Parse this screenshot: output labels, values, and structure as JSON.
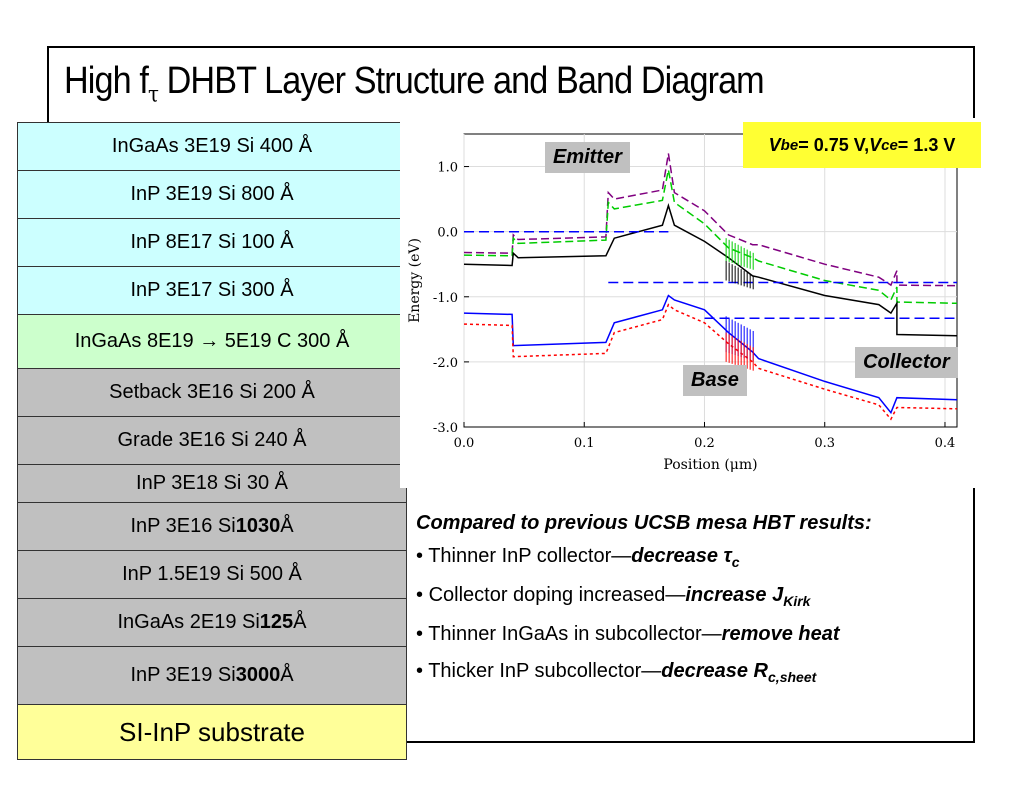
{
  "title": {
    "main": "High f",
    "sub": "τ",
    "rest": " DHBT Layer Structure and Band Diagram"
  },
  "layers": [
    {
      "text": "InGaAs 3E19 Si 400 Å",
      "color": "#ccffff"
    },
    {
      "text": "InP 3E19 Si 800 Å",
      "color": "#ccffff"
    },
    {
      "text": "InP 8E17 Si 100 Å",
      "color": "#ccffff"
    },
    {
      "text": "InP 3E17 Si 300 Å",
      "color": "#ccffff"
    },
    {
      "text": "InGaAs 8E19 → 5E19 C 300 Å",
      "color": "#ccffcc"
    },
    {
      "text": "Setback 3E16 Si 200 Å",
      "color": "#c0c0c0"
    },
    {
      "text": "Grade 3E16 Si 240 Å",
      "color": "#c0c0c0"
    },
    {
      "text": "InP 3E18 Si 30 Å",
      "color": "#c0c0c0"
    },
    {
      "text_pre": "InP 3E16 Si ",
      "text_bold": "1030",
      "text_post": " Å",
      "color": "#c0c0c0"
    },
    {
      "text": "InP 1.5E19 Si 500 Å",
      "color": "#c0c0c0"
    },
    {
      "text_pre": "InGaAs 2E19 Si ",
      "text_bold": "125",
      "text_post": " Å",
      "color": "#c0c0c0"
    },
    {
      "text_pre": "InP 3E19 Si ",
      "text_bold": "3000",
      "text_post": " Å",
      "color": "#c0c0c0"
    },
    {
      "text": "SI-InP substrate",
      "color": "#ffff99"
    }
  ],
  "bias": {
    "v": "V",
    "be": "be",
    "eq1": " = 0.75 V, ",
    "v2": "V",
    "ce": "ce",
    "eq2": " = 1.3 V"
  },
  "region_labels": {
    "emitter": "Emitter",
    "base": "Base",
    "collector": "Collector"
  },
  "chart_data": {
    "type": "line",
    "xlabel": "Position (μm)",
    "ylabel": "Energy (eV)",
    "xlim": [
      0.0,
      0.41
    ],
    "ylim": [
      -3.0,
      1.5
    ],
    "x_ticks": [
      "0.0",
      "0.1",
      "0.2",
      "0.3",
      "0.4"
    ],
    "y_ticks": [
      "1.0",
      "0.0",
      "-1.0",
      "-2.0",
      "-3.0"
    ],
    "series": [
      {
        "color": "#800080",
        "dash": "8,4",
        "points": [
          [
            0,
            -0.32
          ],
          [
            0.04,
            -0.33
          ],
          [
            0.041,
            -0.05
          ],
          [
            0.045,
            -0.12
          ],
          [
            0.118,
            -0.08
          ],
          [
            0.12,
            0.6
          ],
          [
            0.125,
            0.5
          ],
          [
            0.165,
            0.64
          ],
          [
            0.17,
            1.2
          ],
          [
            0.175,
            0.6
          ],
          [
            0.2,
            0.32
          ],
          [
            0.22,
            -0.05
          ],
          [
            0.24,
            -0.2
          ],
          [
            0.245,
            -0.2
          ],
          [
            0.3,
            -0.5
          ],
          [
            0.345,
            -0.7
          ],
          [
            0.355,
            -0.82
          ],
          [
            0.36,
            -0.6
          ],
          [
            0.36,
            -0.82
          ],
          [
            0.41,
            -0.83
          ]
        ]
      },
      {
        "color": "#00cc00",
        "dash": "8,4",
        "points": [
          [
            0,
            -0.36
          ],
          [
            0.04,
            -0.37
          ],
          [
            0.041,
            -0.1
          ],
          [
            0.045,
            -0.18
          ],
          [
            0.118,
            -0.13
          ],
          [
            0.12,
            0.45
          ],
          [
            0.125,
            0.35
          ],
          [
            0.165,
            0.48
          ],
          [
            0.17,
            0.95
          ],
          [
            0.175,
            0.45
          ],
          [
            0.2,
            0.12
          ],
          [
            0.22,
            -0.25
          ],
          [
            0.24,
            -0.4
          ],
          [
            0.245,
            -0.45
          ],
          [
            0.3,
            -0.75
          ],
          [
            0.345,
            -0.9
          ],
          [
            0.355,
            -1.05
          ],
          [
            0.36,
            -0.85
          ],
          [
            0.36,
            -1.08
          ],
          [
            0.41,
            -1.1
          ]
        ]
      },
      {
        "color": "#000000",
        "dash": "",
        "points": [
          [
            0,
            -0.5
          ],
          [
            0.04,
            -0.52
          ],
          [
            0.041,
            -0.33
          ],
          [
            0.045,
            -0.4
          ],
          [
            0.118,
            -0.37
          ],
          [
            0.125,
            -0.1
          ],
          [
            0.165,
            0.1
          ],
          [
            0.17,
            0.4
          ],
          [
            0.175,
            0.1
          ],
          [
            0.2,
            -0.15
          ],
          [
            0.22,
            -0.4
          ],
          [
            0.24,
            -0.68
          ],
          [
            0.245,
            -0.7
          ],
          [
            0.3,
            -0.98
          ],
          [
            0.345,
            -1.12
          ],
          [
            0.355,
            -1.25
          ],
          [
            0.36,
            -1.1
          ],
          [
            0.36,
            -1.58
          ],
          [
            0.41,
            -1.6
          ]
        ]
      },
      {
        "color": "#0000ff",
        "dash": "",
        "points": [
          [
            0,
            -1.25
          ],
          [
            0.04,
            -1.27
          ],
          [
            0.041,
            -1.75
          ],
          [
            0.118,
            -1.7
          ],
          [
            0.125,
            -1.4
          ],
          [
            0.165,
            -1.2
          ],
          [
            0.17,
            -0.98
          ],
          [
            0.175,
            -1.05
          ],
          [
            0.2,
            -1.2
          ],
          [
            0.22,
            -1.55
          ],
          [
            0.24,
            -1.85
          ],
          [
            0.245,
            -1.95
          ],
          [
            0.3,
            -2.3
          ],
          [
            0.345,
            -2.55
          ],
          [
            0.355,
            -2.78
          ],
          [
            0.36,
            -2.55
          ],
          [
            0.36,
            -2.55
          ],
          [
            0.41,
            -2.58
          ]
        ]
      },
      {
        "color": "#ff0000",
        "dash": "3,3",
        "points": [
          [
            0,
            -1.42
          ],
          [
            0.04,
            -1.44
          ],
          [
            0.041,
            -1.92
          ],
          [
            0.118,
            -1.87
          ],
          [
            0.125,
            -1.55
          ],
          [
            0.165,
            -1.35
          ],
          [
            0.17,
            -1.12
          ],
          [
            0.175,
            -1.2
          ],
          [
            0.2,
            -1.4
          ],
          [
            0.22,
            -1.72
          ],
          [
            0.24,
            -2.0
          ],
          [
            0.245,
            -2.1
          ],
          [
            0.3,
            -2.42
          ],
          [
            0.345,
            -2.66
          ],
          [
            0.355,
            -2.88
          ],
          [
            0.36,
            -2.7
          ],
          [
            0.36,
            -2.7
          ],
          [
            0.41,
            -2.72
          ]
        ]
      },
      {
        "color": "#0000ff",
        "dash": "10,5",
        "points": [
          [
            0,
            0.0
          ],
          [
            0.17,
            0.0
          ]
        ]
      },
      {
        "color": "#0000ff",
        "dash": "10,5",
        "points": [
          [
            0.12,
            -0.78
          ],
          [
            0.41,
            -0.78
          ]
        ]
      },
      {
        "color": "#0000ff",
        "dash": "10,5",
        "points": [
          [
            0.2,
            -1.33
          ],
          [
            0.41,
            -1.33
          ]
        ]
      }
    ]
  },
  "notes": {
    "heading": "Compared to previous UCSB mesa HBT results:",
    "items": [
      {
        "pre": "Thinner InP collector—",
        "bold": "decrease τ",
        "sub": "c"
      },
      {
        "pre": "Collector doping increased—",
        "bold": "increase J",
        "sub": "Kirk"
      },
      {
        "pre": "Thinner InGaAs in subcollector—",
        "bold": "remove heat",
        "sub": ""
      },
      {
        "pre": "Thicker InP subcollector—",
        "bold": "decrease R",
        "sub": "c,sheet"
      }
    ]
  }
}
